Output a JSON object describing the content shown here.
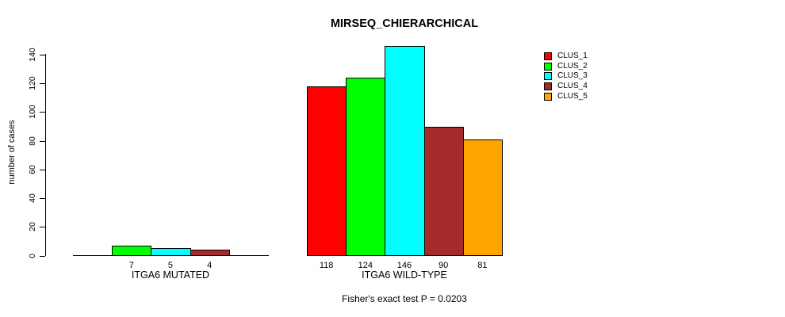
{
  "chart_data": {
    "type": "bar",
    "title": "MIRSEQ_CHIERARCHICAL",
    "ylabel": "number of cases",
    "xlabel": "",
    "ylim": [
      0,
      140
    ],
    "yticks": [
      0,
      20,
      40,
      60,
      80,
      100,
      120,
      140
    ],
    "grid": false,
    "legend_position": "right",
    "series": [
      {
        "name": "CLUS_1",
        "color": "#FF0000"
      },
      {
        "name": "CLUS_2",
        "color": "#00FF00"
      },
      {
        "name": "CLUS_3",
        "color": "#00FFFF"
      },
      {
        "name": "CLUS_4",
        "color": "#A52A2A"
      },
      {
        "name": "CLUS_5",
        "color": "#FFA500"
      }
    ],
    "groups": [
      {
        "label": "ITGA6 MUTATED",
        "values": [
          0,
          7,
          5,
          4,
          0
        ]
      },
      {
        "label": "ITGA6 WILD-TYPE",
        "values": [
          118,
          124,
          146,
          90,
          81
        ]
      }
    ],
    "footnote": "Fisher's exact test P = 0.0203"
  }
}
